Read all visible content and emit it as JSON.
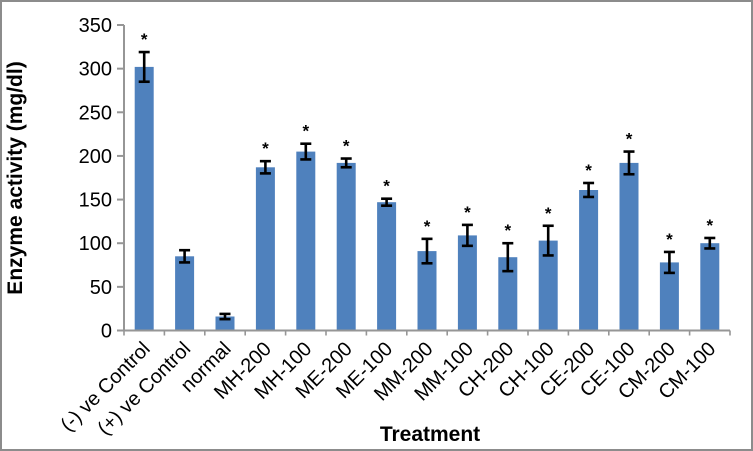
{
  "frame": {
    "background": "#FFFFFF",
    "border_color": "#8C8C8C"
  },
  "chart_data": {
    "type": "bar",
    "title": "",
    "xlabel": "Treatment",
    "ylabel": "Enzyme activity (mg/dl)",
    "ylim": [
      0,
      350
    ],
    "ytick_step": 50,
    "ytick_labels": [
      "0",
      "50",
      "100",
      "150",
      "200",
      "250",
      "300",
      "350"
    ],
    "grid": false,
    "legend": false,
    "bar_color": "#4F81BD",
    "error_bar_color": "#000000",
    "axis_color": "#969696",
    "text_color": "#000000",
    "significance_marker": "*",
    "categories": [
      "(-) ve Control",
      "(+) ve Control",
      "normal",
      "MH-200",
      "MH-100",
      "ME-200",
      "ME-100",
      "MM-200",
      "MM-100",
      "CH-200",
      "CH-100",
      "CE-200",
      "CE-100",
      "CM-200",
      "CM-100"
    ],
    "values": [
      302,
      85,
      16,
      187,
      205,
      192,
      147,
      91,
      109,
      84,
      103,
      161,
      192,
      78,
      100
    ],
    "errors": [
      17,
      7,
      3,
      7,
      9,
      5,
      4,
      14,
      12,
      16,
      17,
      8,
      13,
      12,
      6
    ],
    "significant": [
      true,
      false,
      false,
      true,
      true,
      true,
      true,
      true,
      true,
      true,
      true,
      true,
      true,
      true,
      true
    ]
  }
}
